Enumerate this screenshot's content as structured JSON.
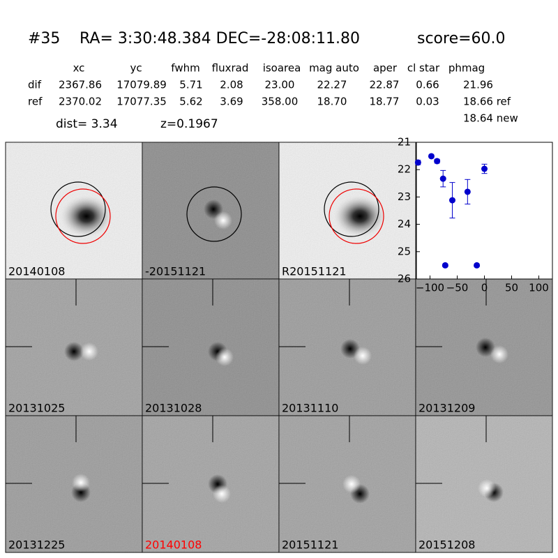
{
  "header": {
    "id": "#35",
    "coords": "RA= 3:30:48.384 DEC=-28:08:11.80",
    "score": "score=60.0"
  },
  "table": {
    "columns": [
      "xc",
      "yc",
      "fwhm",
      "fluxrad",
      "isoarea",
      "mag auto",
      "aper",
      "cl star",
      "phmag"
    ],
    "rows": [
      [
        "dif",
        "2367.86",
        "17079.89",
        "5.71",
        "2.08",
        "23.00",
        "22.27",
        "22.87",
        "0.66",
        "21.96"
      ],
      [
        "ref",
        "2370.02",
        "17077.35",
        "5.62",
        "3.69",
        "358.00",
        "18.70",
        "18.77",
        "0.03",
        "18.66 ref"
      ]
    ],
    "extra": "18.64 new"
  },
  "dist": "dist=  3.34",
  "z": "z=0.1967",
  "stamps": [
    {
      "label": "20140108"
    },
    {
      "label": "-20151121"
    },
    {
      "label": "R20151121"
    },
    {
      "label": "20131025"
    },
    {
      "label": "20131028"
    },
    {
      "label": "20131110"
    },
    {
      "label": "20131209"
    },
    {
      "label": "20131225"
    },
    {
      "label": "20140108",
      "color": "#ff0000"
    },
    {
      "label": "20151121"
    },
    {
      "label": "20151208"
    }
  ],
  "chart_data": {
    "type": "scatter",
    "color": "#0000cc",
    "x": [
      -122,
      -97.5,
      -87,
      -76,
      -59,
      -72,
      -31,
      -14,
      0
    ],
    "y": [
      21.74,
      21.51,
      21.69,
      22.33,
      23.12,
      25.5,
      22.81,
      25.5,
      21.97
    ],
    "errors": [
      0.08,
      0.05,
      0.07,
      0.3,
      0.65,
      0.05,
      0.45,
      0.05,
      0.17
    ],
    "xlim": [
      -125,
      125
    ],
    "ylim": [
      26,
      21
    ],
    "xticks": [
      {
        "value": -100,
        "label": "−100"
      },
      {
        "value": -50,
        "label": "−50"
      },
      0,
      50,
      100
    ],
    "yticks": [
      21,
      22,
      23,
      24,
      25,
      26
    ]
  }
}
